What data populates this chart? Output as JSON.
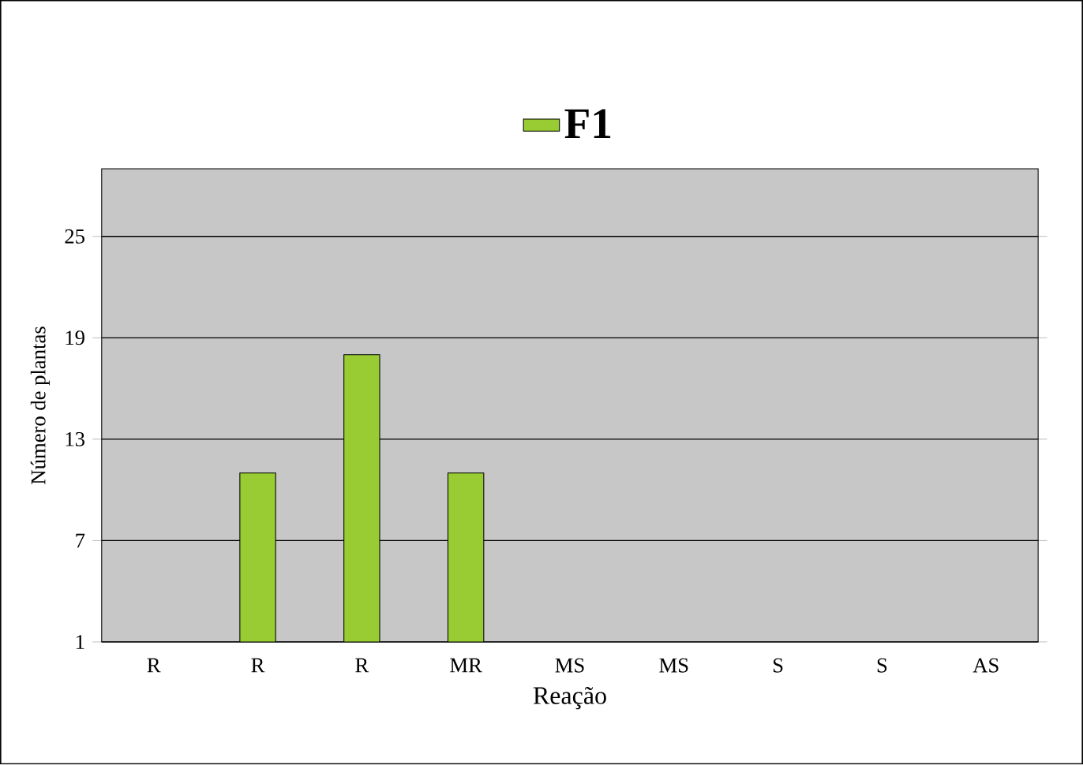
{
  "chart_data": {
    "type": "bar",
    "categories": [
      "R",
      "R",
      "R",
      "MR",
      "MS",
      "MS",
      "S",
      "S",
      "AS"
    ],
    "series": [
      {
        "name": "F1",
        "color": "#99cc33",
        "values": [
          null,
          11,
          18,
          11,
          null,
          null,
          null,
          null,
          null
        ]
      }
    ],
    "xlabel": "Reação",
    "ylabel": "Número de plantas",
    "ylim": [
      1,
      29
    ],
    "yticks": [
      1,
      7,
      13,
      19,
      25
    ],
    "grid": "y",
    "legend": "top"
  }
}
